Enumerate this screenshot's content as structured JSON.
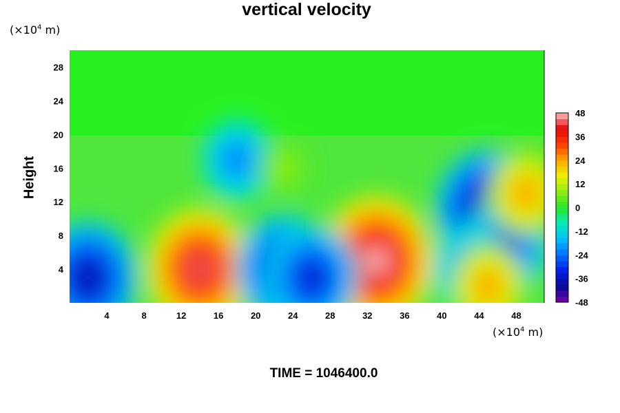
{
  "chart_data": {
    "type": "heatmap",
    "title": "vertical velocity",
    "xlabel": "",
    "ylabel": "Height",
    "x_unit": "(×10",
    "x_unit_exp": "4",
    "x_unit_tail": " m)",
    "y_unit": "(×10",
    "y_unit_exp": "4",
    "y_unit_tail": " m)",
    "xlim": [
      0,
      51
    ],
    "ylim": [
      0,
      30
    ],
    "x_ticks": [
      "4",
      "8",
      "12",
      "16",
      "20",
      "24",
      "28",
      "32",
      "36",
      "40",
      "44",
      "48"
    ],
    "y_ticks": [
      "4",
      "8",
      "12",
      "16",
      "20",
      "24",
      "28"
    ],
    "colorbar": {
      "range": [
        -48,
        48
      ],
      "ticks": [
        "48",
        "36",
        "24",
        "12",
        "0",
        "-12",
        "-24",
        "-36",
        "-48"
      ]
    },
    "features": [
      {
        "x": 14,
        "y": 4,
        "value": 44
      },
      {
        "x": 33,
        "y": 5,
        "value": 48
      },
      {
        "x": 2,
        "y": 3,
        "value": -40
      },
      {
        "x": 23,
        "y": 4,
        "value": -38
      },
      {
        "x": 26,
        "y": 3,
        "value": -36
      },
      {
        "x": 45,
        "y": 11,
        "value": -44
      },
      {
        "x": 47,
        "y": 7,
        "value": -32
      },
      {
        "x": 43,
        "y": 4,
        "value": -26
      },
      {
        "x": 18,
        "y": 17,
        "value": -24
      },
      {
        "x": 23,
        "y": 16,
        "value": 10
      },
      {
        "x": 49,
        "y": 13,
        "value": 26
      },
      {
        "x": 45,
        "y": 2,
        "value": 26
      }
    ],
    "grid": false,
    "legend": "right"
  },
  "footer": {
    "time_label": "TIME = 1046400.0"
  }
}
